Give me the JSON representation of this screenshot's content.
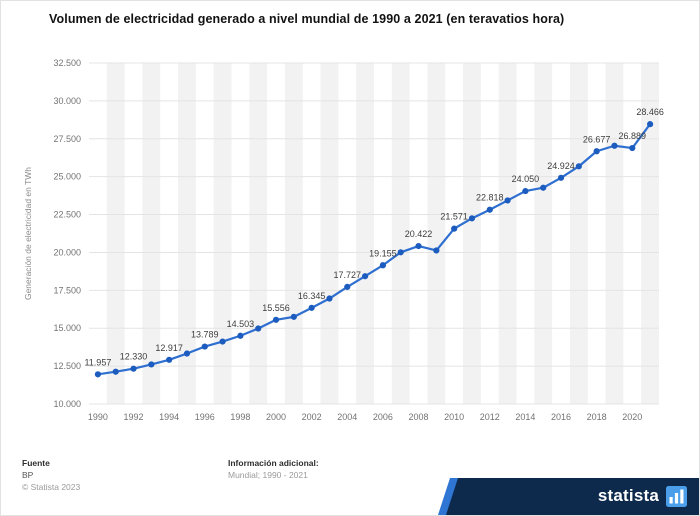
{
  "title": "Volumen de electricidad generado a nivel mundial de 1990 a 2021 (en teravatios hora)",
  "footer": {
    "source_heading": "Fuente",
    "source": "BP",
    "copyright": "© Statista 2023",
    "info_heading": "Información adicional:",
    "info": "Mundial; 1990 - 2021"
  },
  "brand": {
    "name": "statista"
  },
  "chart_data": {
    "type": "line",
    "title": "Volumen de electricidad generado a nivel mundial de 1990 a 2021 (en teravatios hora)",
    "xlabel": "",
    "ylabel": "Generación de electricidad en TWh",
    "ylim": [
      10000,
      32500
    ],
    "grid": true,
    "legend": "none",
    "line_color": "#2e6fd0",
    "marker_color": "#1c5cbf",
    "stripe_color": "#f2f2f2",
    "grid_color": "#e4e4e4",
    "x": [
      1990,
      1991,
      1992,
      1993,
      1994,
      1995,
      1996,
      1997,
      1998,
      1999,
      2000,
      2001,
      2002,
      2003,
      2004,
      2005,
      2006,
      2007,
      2008,
      2009,
      2010,
      2011,
      2012,
      2013,
      2014,
      2015,
      2016,
      2017,
      2018,
      2019,
      2020,
      2021
    ],
    "values": [
      11957,
      12130,
      12330,
      12610,
      12917,
      13330,
      13789,
      14120,
      14503,
      14980,
      15556,
      15750,
      16345,
      16960,
      17727,
      18430,
      19155,
      20010,
      20422,
      20130,
      21571,
      22250,
      22818,
      23430,
      24050,
      24270,
      24924,
      25680,
      26677,
      27040,
      26889,
      28466
    ],
    "point_labels": [
      "11.957",
      null,
      "12.330",
      null,
      "12.917",
      null,
      "13.789",
      null,
      "14.503",
      null,
      "15.556",
      null,
      "16.345",
      null,
      "17.727",
      null,
      "19.155",
      null,
      "20.422",
      null,
      "21.571",
      null,
      "22.818",
      null,
      "24.050",
      null,
      "24.924",
      null,
      "26.677",
      null,
      "26.889",
      "28.466"
    ],
    "x_tick_years": [
      1990,
      1992,
      1994,
      1996,
      1998,
      2000,
      2002,
      2004,
      2006,
      2008,
      2010,
      2012,
      2014,
      2016,
      2018,
      2020
    ],
    "y_tick_values": [
      10000,
      12500,
      15000,
      17500,
      20000,
      22500,
      25000,
      27500,
      30000,
      32500
    ],
    "y_tick_labels": [
      "10.000",
      "12.500",
      "15.000",
      "17.500",
      "20.000",
      "22.500",
      "25.000",
      "27.500",
      "30.000",
      "32.500"
    ]
  }
}
